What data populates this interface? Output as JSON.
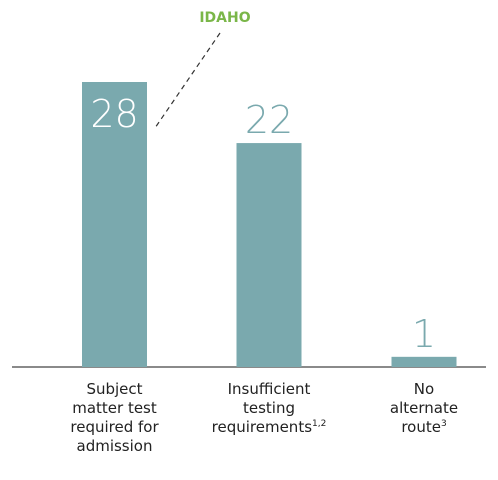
{
  "chart_data": {
    "type": "bar",
    "categories": [
      [
        "Subject",
        "matter test",
        "required for",
        "admission"
      ],
      [
        "Insufficient",
        "testing",
        "requirements"
      ],
      [
        "No",
        "alternate",
        "route"
      ]
    ],
    "footnotes": [
      null,
      "1,2",
      "3"
    ],
    "values": [
      28,
      22,
      1
    ],
    "color": "#7aa9ae",
    "annotation": "IDAHO"
  }
}
